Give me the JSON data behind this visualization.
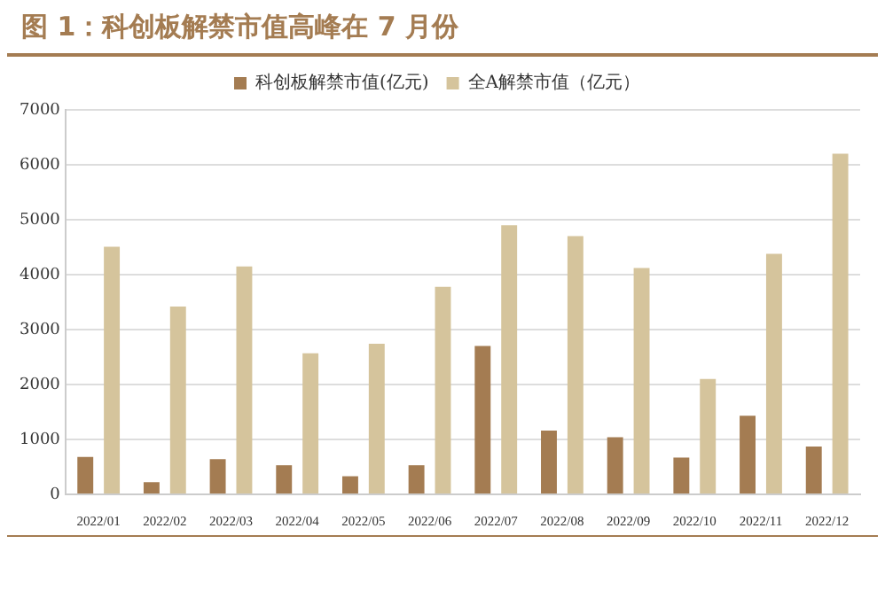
{
  "chart_data": {
    "type": "bar",
    "title": "图 1：科创板解禁市值高峰在 7 月份",
    "categories": [
      "2022/01",
      "2022/02",
      "2022/03",
      "2022/04",
      "2022/05",
      "2022/06",
      "2022/07",
      "2022/08",
      "2022/09",
      "2022/10",
      "2022/11",
      "2022/12"
    ],
    "series": [
      {
        "name": "科创板解禁市值(亿元)",
        "color": "#a47c52",
        "values": [
          680,
          220,
          640,
          530,
          330,
          530,
          2700,
          1160,
          1040,
          670,
          1430,
          870
        ]
      },
      {
        "name": "全A解禁市值（亿元）",
        "color": "#d5c49c",
        "values": [
          4510,
          3420,
          4150,
          2570,
          2740,
          3780,
          4900,
          4700,
          4120,
          2100,
          4380,
          6200
        ]
      }
    ],
    "ylim": [
      0,
      7000
    ],
    "yticks": [
      0,
      1000,
      2000,
      3000,
      4000,
      5000,
      6000,
      7000
    ],
    "grid": "y",
    "legend": "top"
  }
}
